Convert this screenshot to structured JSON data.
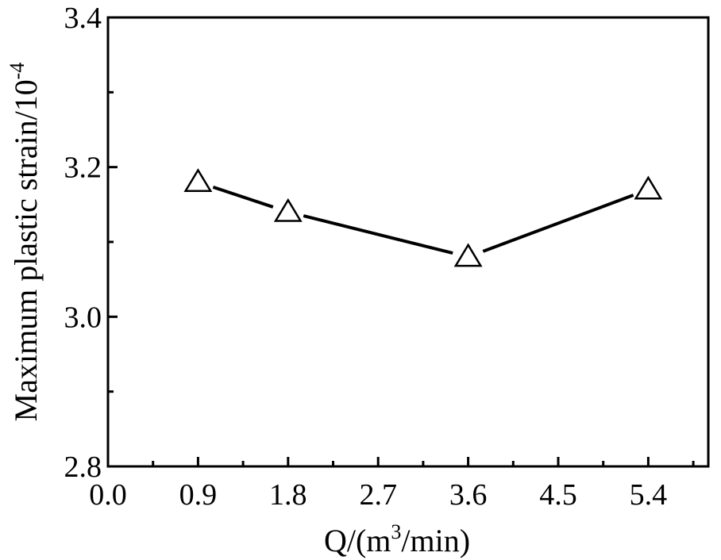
{
  "chart_data": {
    "type": "line",
    "title": "",
    "x": [
      0.9,
      1.8,
      3.6,
      5.4
    ],
    "series": [
      {
        "name": "Maximum plastic strain",
        "values": [
          3.18,
          3.14,
          3.08,
          3.17
        ],
        "marker": "open-triangle",
        "color": "#000000"
      }
    ],
    "xlim": [
      0.0,
      6.0
    ],
    "ylim": [
      2.8,
      3.4
    ],
    "x_ticks": [
      "0.0",
      "0.9",
      "1.8",
      "2.7",
      "3.6",
      "4.5",
      "5.4"
    ],
    "y_ticks": [
      "2.8",
      "3.0",
      "3.2",
      "3.4"
    ],
    "xlabel": {
      "prefix": "Q/(m",
      "sup": "3",
      "suffix": "/min)"
    },
    "ylabel": {
      "text": "Maximum plastic strain/10",
      "sup": "-4"
    },
    "grid": false,
    "legend": "none"
  }
}
